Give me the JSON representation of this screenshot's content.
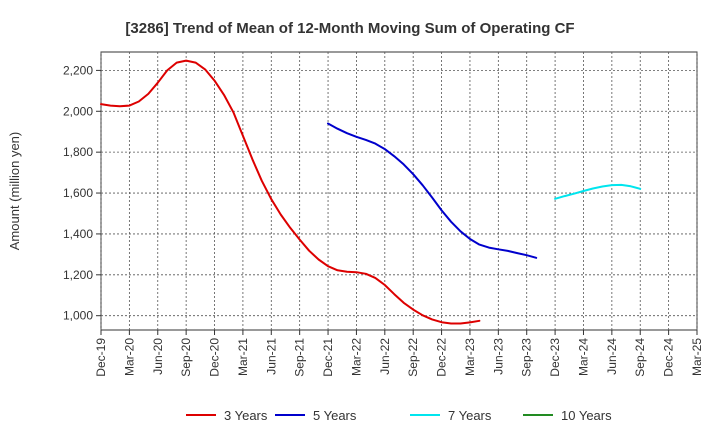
{
  "chart_data": {
    "type": "line",
    "title": "[3286]  Trend of Mean of 12-Month Moving Sum of Operating CF",
    "xlabel": "",
    "ylabel": "Amount (million yen)",
    "ylim": [
      930,
      2290
    ],
    "yticks": [
      1000,
      1200,
      1400,
      1600,
      1800,
      2000,
      2200
    ],
    "ytick_labels": [
      "1,000",
      "1,200",
      "1,400",
      "1,600",
      "1,800",
      "2,000",
      "2,200"
    ],
    "x_tick_labels": [
      "Dec-19",
      "Mar-20",
      "Jun-20",
      "Sep-20",
      "Dec-20",
      "Mar-21",
      "Jun-21",
      "Sep-21",
      "Dec-21",
      "Mar-22",
      "Jun-22",
      "Sep-22",
      "Dec-22",
      "Mar-23",
      "Jun-23",
      "Sep-23",
      "Dec-23",
      "Mar-24",
      "Jun-24",
      "Sep-24",
      "Dec-24",
      "Mar-25"
    ],
    "grid": true,
    "legend_position": "bottom",
    "series": [
      {
        "name": "3 Years",
        "color": "#dd0000",
        "start_index": 0,
        "values": [
          2035,
          2028,
          2025,
          2028,
          2048,
          2085,
          2140,
          2200,
          2238,
          2248,
          2238,
          2205,
          2150,
          2080,
          1995,
          1880,
          1765,
          1660,
          1570,
          1495,
          1430,
          1372,
          1318,
          1275,
          1242,
          1222,
          1215,
          1213,
          1205,
          1185,
          1150,
          1105,
          1063,
          1030,
          1002,
          982,
          968,
          962,
          962,
          967,
          975
        ]
      },
      {
        "name": "5 Years",
        "color": "#0000cc",
        "start_index": 24,
        "values": [
          1940,
          1915,
          1893,
          1875,
          1860,
          1842,
          1815,
          1780,
          1740,
          1692,
          1638,
          1578,
          1515,
          1460,
          1413,
          1375,
          1348,
          1333,
          1325,
          1317,
          1306,
          1296,
          1283
        ]
      },
      {
        "name": "7 Years",
        "color": "#00e5ee",
        "start_index": 48,
        "values": [
          1572,
          1585,
          1597,
          1610,
          1622,
          1632,
          1639,
          1640,
          1633,
          1621
        ]
      },
      {
        "name": "10 Years",
        "color": "#228b22",
        "start_index": 0,
        "values": []
      }
    ]
  }
}
